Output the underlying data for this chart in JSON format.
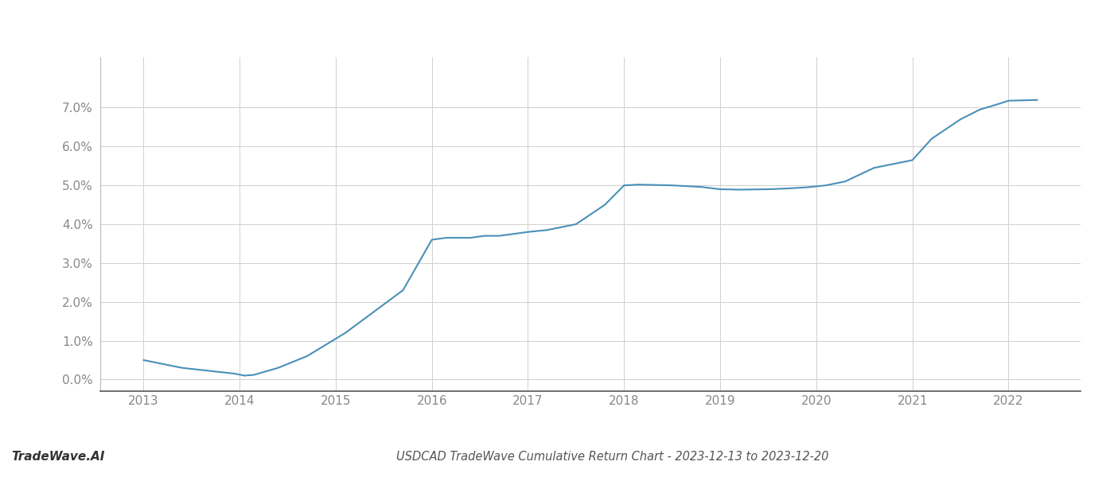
{
  "x": [
    2013.0,
    2013.4,
    2013.95,
    2014.05,
    2014.15,
    2014.4,
    2014.7,
    2015.1,
    2015.4,
    2015.7,
    2016.0,
    2016.15,
    2016.4,
    2016.55,
    2016.7,
    2016.85,
    2017.0,
    2017.2,
    2017.5,
    2017.8,
    2018.0,
    2018.15,
    2018.5,
    2018.8,
    2019.0,
    2019.2,
    2019.5,
    2019.7,
    2019.9,
    2020.1,
    2020.3,
    2020.6,
    2020.9,
    2021.0,
    2021.2,
    2021.5,
    2021.7,
    2021.9,
    2022.0,
    2022.3
  ],
  "y": [
    0.005,
    0.003,
    0.0015,
    0.001,
    0.0012,
    0.003,
    0.006,
    0.012,
    0.0175,
    0.023,
    0.036,
    0.0365,
    0.0365,
    0.037,
    0.037,
    0.0375,
    0.038,
    0.0385,
    0.04,
    0.045,
    0.05,
    0.0502,
    0.05,
    0.0496,
    0.049,
    0.0489,
    0.049,
    0.0492,
    0.0495,
    0.05,
    0.051,
    0.0545,
    0.056,
    0.0565,
    0.062,
    0.067,
    0.0695,
    0.071,
    0.0718,
    0.072
  ],
  "line_color": "#4a90b8",
  "line_width": 1.5,
  "background_color": "#ffffff",
  "grid_color": "#d0d0d0",
  "title": "USDCAD TradeWave Cumulative Return Chart - 2023-12-13 to 2023-12-20",
  "watermark": "TradeWave.AI",
  "yticks": [
    0.0,
    0.01,
    0.02,
    0.03,
    0.04,
    0.05,
    0.06,
    0.07
  ],
  "ytick_labels": [
    "0.0%",
    "1.0%",
    "2.0%",
    "3.0%",
    "4.0%",
    "5.0%",
    "6.0%",
    "7.0%"
  ],
  "xticks": [
    2013,
    2014,
    2015,
    2016,
    2017,
    2018,
    2019,
    2020,
    2021,
    2022
  ],
  "xlim": [
    2012.55,
    2022.75
  ],
  "ylim": [
    -0.003,
    0.083
  ],
  "title_fontsize": 10.5,
  "tick_fontsize": 11,
  "watermark_fontsize": 11,
  "label_color": "#888888"
}
